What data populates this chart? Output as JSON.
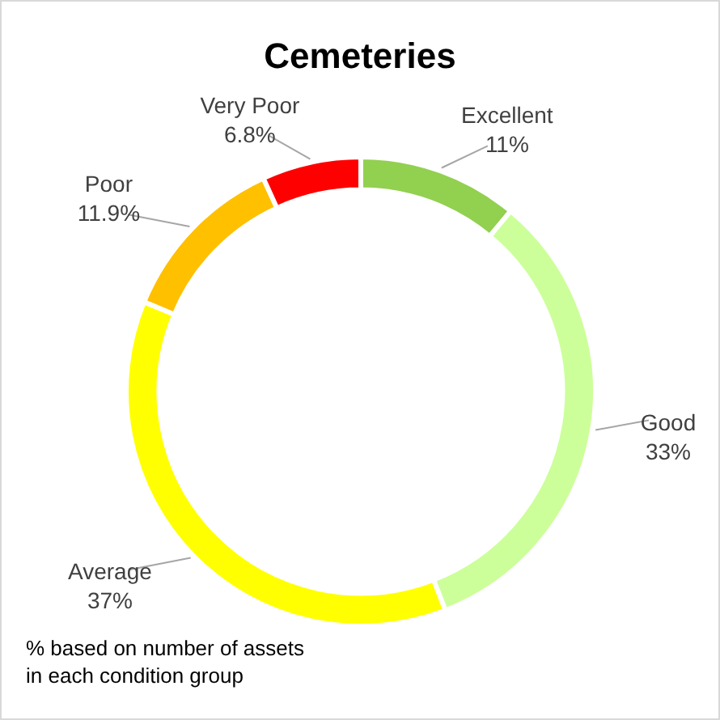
{
  "chart_data": {
    "type": "donut",
    "title": "Cemeteries",
    "categories": [
      "Excellent",
      "Good",
      "Average",
      "Poor",
      "Very Poor"
    ],
    "values": [
      11,
      33,
      37,
      11.9,
      6.8
    ],
    "value_labels": [
      "11%",
      "33%",
      "37%",
      "11.9%",
      "6.8%"
    ],
    "colors": [
      "#92d050",
      "#ccff99",
      "#ffff00",
      "#ffc000",
      "#ff0000"
    ],
    "annotations": [
      "% based on number of assets in each condition group"
    ]
  }
}
